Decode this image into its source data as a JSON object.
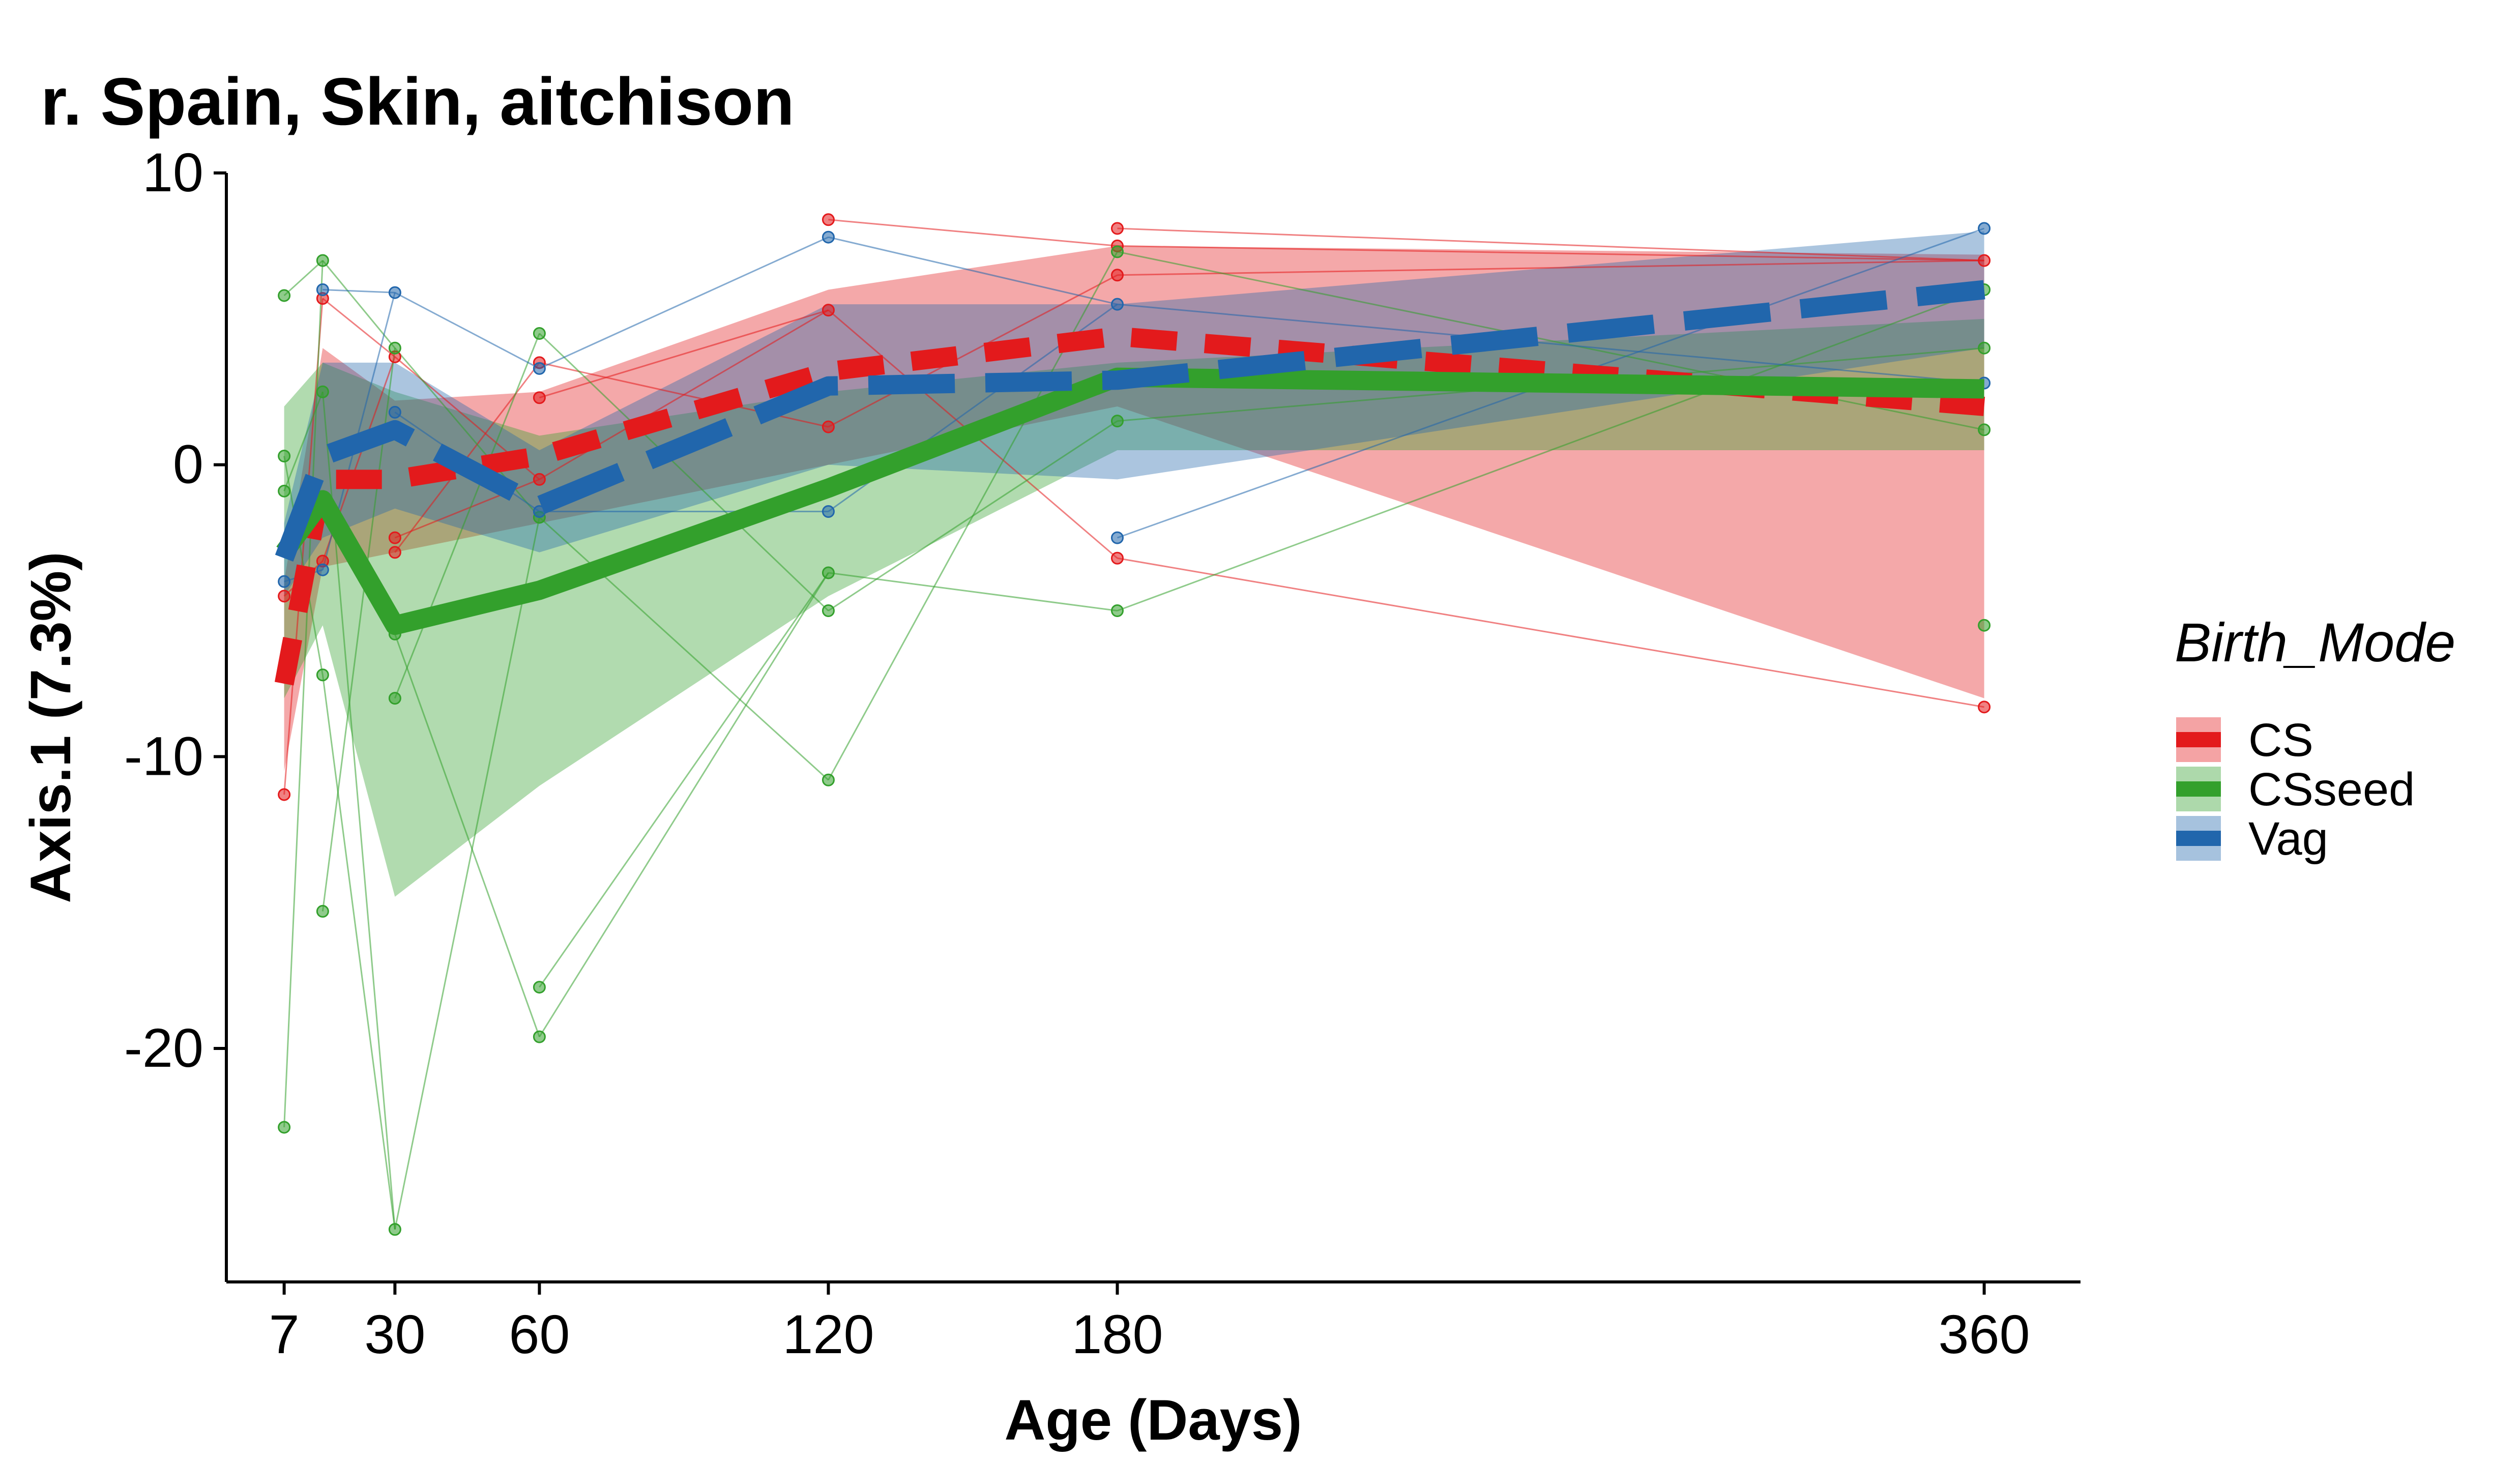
{
  "chart_data": {
    "type": "line",
    "title": "r. Spain, Skin, aitchison",
    "xlabel": "Age (Days)",
    "ylabel": "Axis.1 (7.3%)",
    "xlim": [
      -5,
      380
    ],
    "ylim": [
      -28,
      10
    ],
    "x_ticks": [
      7,
      30,
      60,
      120,
      180,
      360
    ],
    "x_tick_labels": [
      "7",
      "30",
      "60",
      "120",
      "180",
      "360"
    ],
    "y_ticks": [
      10,
      0,
      -10,
      -20
    ],
    "y_tick_labels": [
      "10",
      "0",
      "-10",
      "-20"
    ],
    "grid": false,
    "legend": {
      "title": "Birth_Mode",
      "position": "right"
    },
    "series": [
      {
        "name": "CS",
        "color": "#E31A1C",
        "dash": "dashed",
        "mean": [
          [
            7,
            -7.5
          ],
          [
            15,
            -0.5
          ],
          [
            30,
            -0.5
          ],
          [
            60,
            0.3
          ],
          [
            120,
            3.2
          ],
          [
            180,
            4.4
          ],
          [
            360,
            2.0
          ]
        ],
        "band_upper": [
          [
            7,
            -4.0
          ],
          [
            15,
            4.0
          ],
          [
            30,
            2.2
          ],
          [
            60,
            2.5
          ],
          [
            120,
            6.0
          ],
          [
            180,
            7.5
          ],
          [
            360,
            7.2
          ]
        ],
        "band_lower": [
          [
            7,
            -10.5
          ],
          [
            15,
            -3.5
          ],
          [
            30,
            -3.0
          ],
          [
            60,
            -2.0
          ],
          [
            120,
            0.0
          ],
          [
            180,
            2.0
          ],
          [
            360,
            -8.0
          ]
        ],
        "points": [
          [
            7,
            -11.3
          ],
          [
            7,
            -4.5
          ],
          [
            15,
            5.7
          ],
          [
            15,
            -3.3
          ],
          [
            30,
            3.7
          ],
          [
            30,
            -2.5
          ],
          [
            30,
            -3.0
          ],
          [
            60,
            3.5
          ],
          [
            60,
            -0.5
          ],
          [
            60,
            2.3
          ],
          [
            120,
            8.4
          ],
          [
            120,
            5.3
          ],
          [
            120,
            1.3
          ],
          [
            180,
            8.1
          ],
          [
            180,
            7.5
          ],
          [
            180,
            6.5
          ],
          [
            180,
            -3.2
          ],
          [
            360,
            7.0
          ],
          [
            360,
            -8.3
          ]
        ]
      },
      {
        "name": "CSseed",
        "color": "#33A02C",
        "dash": "solid",
        "mean": [
          [
            7,
            -3.0
          ],
          [
            15,
            -1.2
          ],
          [
            30,
            -5.5
          ],
          [
            60,
            -4.3
          ],
          [
            120,
            -0.8
          ],
          [
            180,
            3.0
          ],
          [
            360,
            2.6
          ]
        ],
        "band_upper": [
          [
            7,
            2.0
          ],
          [
            15,
            3.5
          ],
          [
            30,
            2.5
          ],
          [
            60,
            1.0
          ],
          [
            120,
            2.5
          ],
          [
            180,
            3.5
          ],
          [
            360,
            5.0
          ]
        ],
        "band_lower": [
          [
            7,
            -8.0
          ],
          [
            15,
            -5.5
          ],
          [
            30,
            -14.8
          ],
          [
            60,
            -11.0
          ],
          [
            120,
            -4.5
          ],
          [
            180,
            0.5
          ],
          [
            360,
            0.5
          ]
        ],
        "points": [
          [
            7,
            5.8
          ],
          [
            7,
            0.3
          ],
          [
            7,
            -0.9
          ],
          [
            7,
            -22.7
          ],
          [
            15,
            7.0
          ],
          [
            15,
            2.5
          ],
          [
            15,
            -7.2
          ],
          [
            15,
            -15.3
          ],
          [
            30,
            4.0
          ],
          [
            30,
            -5.8
          ],
          [
            30,
            -8.0
          ],
          [
            30,
            -26.2
          ],
          [
            60,
            4.5
          ],
          [
            60,
            -1.8
          ],
          [
            60,
            -17.9
          ],
          [
            60,
            -19.6
          ],
          [
            120,
            -3.7
          ],
          [
            120,
            -5.0
          ],
          [
            120,
            -10.8
          ],
          [
            180,
            7.3
          ],
          [
            180,
            1.5
          ],
          [
            180,
            -5.0
          ],
          [
            360,
            6.0
          ],
          [
            360,
            4.0
          ],
          [
            360,
            1.2
          ],
          [
            360,
            -5.5
          ]
        ]
      },
      {
        "name": "Vag",
        "color": "#2166AC",
        "dash": "longdash",
        "mean": [
          [
            7,
            -3.2
          ],
          [
            15,
            0.3
          ],
          [
            30,
            1.2
          ],
          [
            60,
            -1.4
          ],
          [
            120,
            2.7
          ],
          [
            180,
            2.9
          ],
          [
            360,
            6.0
          ]
        ],
        "band_upper": [
          [
            7,
            -2.0
          ],
          [
            15,
            3.5
          ],
          [
            30,
            3.5
          ],
          [
            60,
            0.5
          ],
          [
            120,
            5.5
          ],
          [
            180,
            5.5
          ],
          [
            360,
            8.0
          ]
        ],
        "band_lower": [
          [
            7,
            -4.5
          ],
          [
            15,
            -2.5
          ],
          [
            30,
            -1.5
          ],
          [
            60,
            -3.0
          ],
          [
            120,
            0.0
          ],
          [
            180,
            -0.5
          ],
          [
            360,
            4.0
          ]
        ],
        "points": [
          [
            7,
            -4.0
          ],
          [
            15,
            6.0
          ],
          [
            15,
            -3.6
          ],
          [
            30,
            5.9
          ],
          [
            30,
            1.8
          ],
          [
            60,
            3.3
          ],
          [
            60,
            -1.6
          ],
          [
            120,
            7.8
          ],
          [
            120,
            -1.6
          ],
          [
            180,
            5.5
          ],
          [
            180,
            -2.5
          ],
          [
            360,
            8.1
          ],
          [
            360,
            2.8
          ]
        ]
      }
    ]
  }
}
